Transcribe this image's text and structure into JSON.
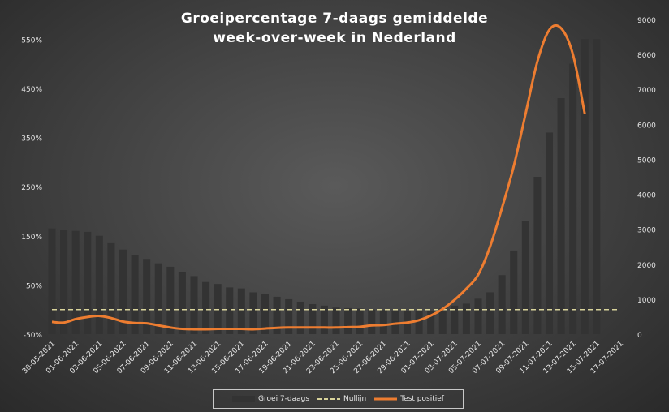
{
  "chart_data": {
    "type": "bar",
    "title_lines": [
      "Groeipercentage 7-daags gemiddelde",
      "week-over-week in Nederland"
    ],
    "x_tick_labels": [
      "30-05-2021",
      "01-06-2021",
      "03-06-2021",
      "05-06-2021",
      "07-06-2021",
      "09-06-2021",
      "11-06-2021",
      "13-06-2021",
      "15-06-2021",
      "17-06-2021",
      "19-06-2021",
      "21-06-2021",
      "23-06-2021",
      "25-06-2021",
      "27-06-2021",
      "29-06-2021",
      "01-07-2021",
      "03-07-2021",
      "05-07-2021",
      "07-07-2021",
      "09-07-2021",
      "11-07-2021",
      "13-07-2021",
      "15-07-2021",
      "17-07-2021"
    ],
    "dates": [
      "30-05-2021",
      "31-05-2021",
      "01-06-2021",
      "02-06-2021",
      "03-06-2021",
      "04-06-2021",
      "05-06-2021",
      "06-06-2021",
      "07-06-2021",
      "08-06-2021",
      "09-06-2021",
      "10-06-2021",
      "11-06-2021",
      "12-06-2021",
      "13-06-2021",
      "14-06-2021",
      "15-06-2021",
      "16-06-2021",
      "17-06-2021",
      "18-06-2021",
      "19-06-2021",
      "20-06-2021",
      "21-06-2021",
      "22-06-2021",
      "23-06-2021",
      "24-06-2021",
      "25-06-2021",
      "26-06-2021",
      "27-06-2021",
      "28-06-2021",
      "29-06-2021",
      "30-06-2021",
      "01-07-2021",
      "02-07-2021",
      "03-07-2021",
      "04-07-2021",
      "05-07-2021",
      "06-07-2021",
      "07-07-2021",
      "08-07-2021",
      "09-07-2021",
      "10-07-2021",
      "11-07-2021",
      "12-07-2021",
      "13-07-2021",
      "14-07-2021",
      "15-07-2021",
      "16-07-2021",
      "17-07-2021"
    ],
    "y_left": {
      "ticks": [
        "-50%",
        "50%",
        "150%",
        "250%",
        "350%",
        "450%",
        "550%"
      ],
      "ylim": [
        -50,
        590
      ]
    },
    "y_right": {
      "ticks": [
        "0",
        "1000",
        "2000",
        "3000",
        "4000",
        "5000",
        "6000",
        "7000",
        "8000",
        "9000"
      ],
      "ylim": [
        0,
        9000
      ]
    },
    "series": [
      {
        "name": "Groei 7-daags",
        "type": "bar",
        "axis": "left",
        "color": "#333333",
        "values": [
          165,
          162,
          160,
          158,
          150,
          135,
          122,
          110,
          103,
          94,
          87,
          77,
          68,
          56,
          52,
          45,
          43,
          35,
          32,
          26,
          21,
          16,
          11,
          8,
          4,
          3,
          2,
          0,
          -1,
          -2,
          -2,
          -2,
          -2,
          2,
          8,
          12,
          22,
          35,
          70,
          120,
          180,
          270,
          360,
          430,
          500,
          550,
          550,
          null,
          null
        ]
      },
      {
        "name": "Nullijn",
        "type": "line",
        "axis": "left",
        "color": "#d8d39b",
        "dashed": true,
        "value": 0
      },
      {
        "name": "Test positief",
        "type": "line",
        "axis": "right",
        "color": "#ed7d31",
        "values": [
          350,
          330,
          430,
          490,
          520,
          460,
          360,
          320,
          310,
          250,
          190,
          150,
          140,
          140,
          150,
          150,
          150,
          140,
          160,
          180,
          190,
          190,
          190,
          190,
          190,
          200,
          210,
          250,
          260,
          300,
          330,
          400,
          530,
          720,
          980,
          1300,
          1700,
          2500,
          3600,
          4800,
          6300,
          7800,
          8700,
          8750,
          8000,
          6300,
          null,
          null,
          null
        ]
      }
    ]
  },
  "legend": {
    "bar_label": "Groei 7-daags",
    "null_label": "Nullijn",
    "line_label": "Test positief"
  }
}
